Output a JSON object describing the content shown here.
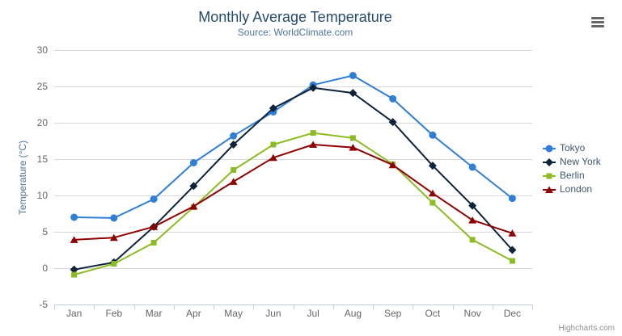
{
  "chart_data": {
    "type": "line",
    "title": "Monthly Average Temperature",
    "subtitle": "Source: WorldClimate.com",
    "xlabel": "",
    "ylabel": "Temperature (°C)",
    "categories": [
      "Jan",
      "Feb",
      "Mar",
      "Apr",
      "May",
      "Jun",
      "Jul",
      "Aug",
      "Sep",
      "Oct",
      "Nov",
      "Dec"
    ],
    "series": [
      {
        "name": "Tokyo",
        "color": "#2f7ed8",
        "marker": "circle",
        "values": [
          7.0,
          6.9,
          9.5,
          14.5,
          18.2,
          21.5,
          25.2,
          26.5,
          23.3,
          18.3,
          13.9,
          9.6
        ]
      },
      {
        "name": "New York",
        "color": "#0d233a",
        "marker": "diamond",
        "values": [
          -0.2,
          0.8,
          5.7,
          11.3,
          17.0,
          22.0,
          24.8,
          24.1,
          20.1,
          14.1,
          8.6,
          2.5
        ]
      },
      {
        "name": "Berlin",
        "color": "#8bbc21",
        "marker": "square",
        "values": [
          -0.9,
          0.6,
          3.5,
          8.4,
          13.5,
          17.0,
          18.6,
          17.9,
          14.3,
          9.0,
          3.9,
          1.0
        ]
      },
      {
        "name": "London",
        "color": "#910000",
        "marker": "triangle",
        "values": [
          3.9,
          4.2,
          5.7,
          8.5,
          11.9,
          15.2,
          17.0,
          16.6,
          14.2,
          10.3,
          6.6,
          4.8
        ]
      }
    ],
    "ylim": [
      -5,
      30
    ],
    "ytick_interval": 5,
    "yticks": [
      30,
      25,
      20,
      15,
      10,
      5,
      0,
      -5
    ],
    "grid": true,
    "legend_position": "right"
  },
  "credits": {
    "text": "Highcharts.com"
  },
  "export_menu": {
    "icon": "hamburger-icon"
  },
  "style_colors": {
    "title_color": "#274b6d",
    "subtitle_color": "#4d759e",
    "axis_title_color": "#4d759e",
    "tick_label_color": "#666666",
    "legend_text_color": "#3e576f",
    "grid_color": "#d8d8d8",
    "axis_line_color": "#c0d0e0",
    "credits_color": "#909090",
    "menu_icon_color": "#666666",
    "background": "#ffffff"
  }
}
